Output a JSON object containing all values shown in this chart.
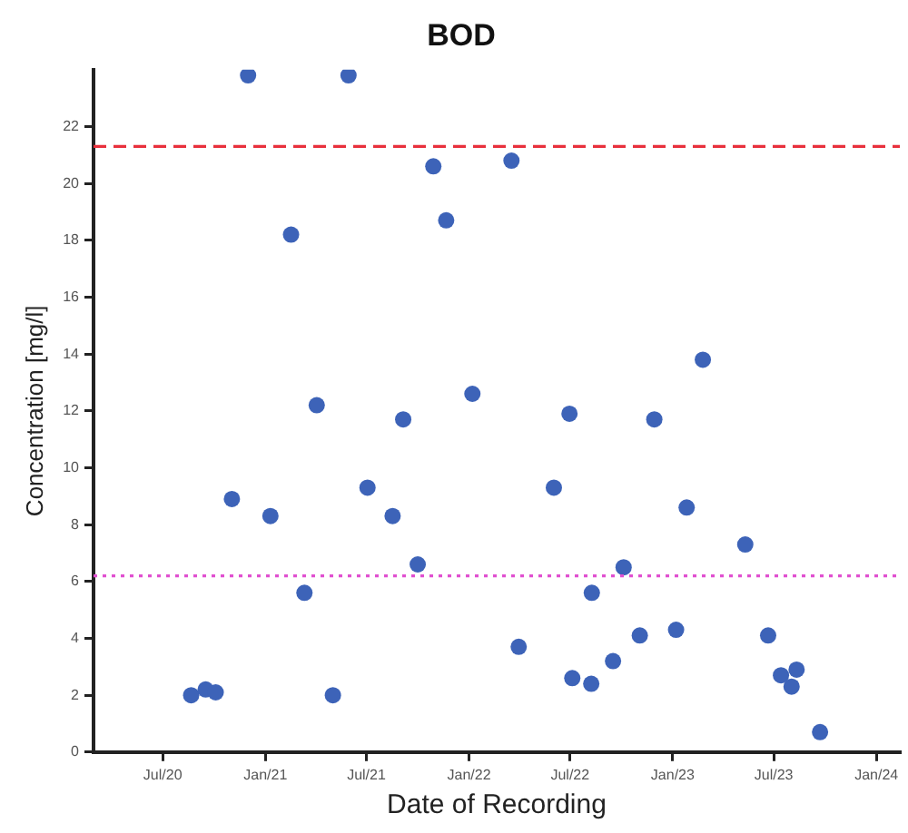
{
  "chart_data": {
    "type": "scatter",
    "title": "BOD",
    "xlabel": "Date of Recording",
    "ylabel": "Concentration [mg/l]",
    "x": [
      "2020-08-21",
      "2020-09-16",
      "2020-10-04",
      "2020-11-02",
      "2020-12-01",
      "2021-01-10",
      "2021-02-16",
      "2021-03-12",
      "2021-04-03",
      "2021-05-02",
      "2021-05-30",
      "2021-07-03",
      "2021-08-17",
      "2021-09-05",
      "2021-10-01",
      "2021-10-29",
      "2021-11-21",
      "2022-01-07",
      "2022-03-18",
      "2022-03-31",
      "2022-06-02",
      "2022-06-30",
      "2022-07-05",
      "2022-08-08",
      "2022-08-09",
      "2022-09-16",
      "2022-10-05",
      "2022-11-03",
      "2022-11-29",
      "2023-01-07",
      "2023-01-26",
      "2023-02-24",
      "2023-05-11",
      "2023-06-21",
      "2023-07-14",
      "2023-08-02",
      "2023-08-11",
      "2023-09-22"
    ],
    "values": [
      2.0,
      2.2,
      2.1,
      8.9,
      23.8,
      8.3,
      18.2,
      5.6,
      12.2,
      2.0,
      23.8,
      9.3,
      8.3,
      11.7,
      6.6,
      20.6,
      18.7,
      12.6,
      20.8,
      3.7,
      9.3,
      11.9,
      2.6,
      2.4,
      5.6,
      3.2,
      6.5,
      4.1,
      11.7,
      4.3,
      8.6,
      13.8,
      7.3,
      4.1,
      2.7,
      2.3,
      2.9,
      0.7
    ],
    "color": "#3d63b8",
    "marker": "circle",
    "grid": false,
    "legend": false,
    "xlim": [
      "2020-02-28",
      "2024-02-12"
    ],
    "xticks": [
      {
        "value": "2020-07-01",
        "label": "Jul/20"
      },
      {
        "value": "2021-01-01",
        "label": "Jan/21"
      },
      {
        "value": "2021-07-01",
        "label": "Jul/21"
      },
      {
        "value": "2022-01-01",
        "label": "Jan/22"
      },
      {
        "value": "2022-07-01",
        "label": "Jul/22"
      },
      {
        "value": "2023-01-01",
        "label": "Jan/23"
      },
      {
        "value": "2023-07-01",
        "label": "Jul/23"
      },
      {
        "value": "2024-01-01",
        "label": "Jan/24"
      }
    ],
    "ylim": [
      0,
      24
    ],
    "yticks": [
      0,
      2,
      4,
      6,
      8,
      10,
      12,
      14,
      16,
      18,
      20,
      22
    ],
    "ref_lines": [
      {
        "axis": "y",
        "value": 21.3,
        "color": "#e8303c",
        "line_style": "dashed"
      },
      {
        "axis": "y",
        "value": 6.2,
        "color": "#e050d0",
        "line_style": "dotted"
      }
    ]
  }
}
